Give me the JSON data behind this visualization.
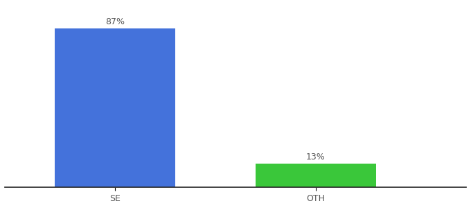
{
  "categories": [
    "SE",
    "OTH"
  ],
  "values": [
    87,
    13
  ],
  "bar_colors": [
    "#4472db",
    "#3ac73a"
  ],
  "bar_labels": [
    "87%",
    "13%"
  ],
  "label_fontsize": 9,
  "tick_fontsize": 9,
  "background_color": "#ffffff",
  "ylim": [
    0,
    100
  ],
  "bar_width": 0.6
}
